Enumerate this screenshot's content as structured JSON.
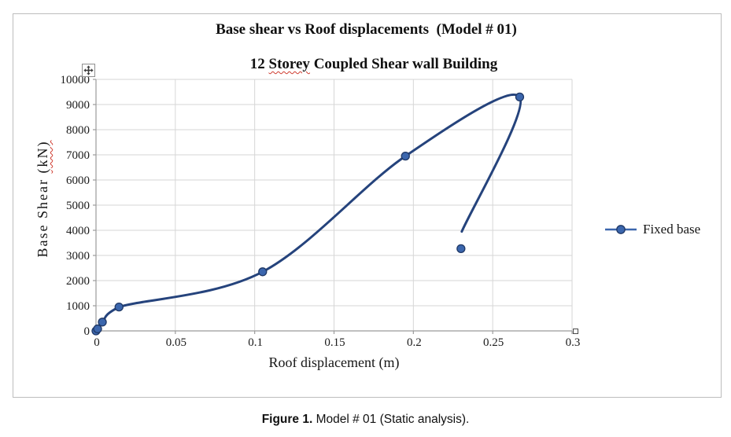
{
  "figure": {
    "title_line1": "Base shear vs Roof displacements  (Model # 01)",
    "title_line2": {
      "prefix": "12 ",
      "word": "Storey",
      "suffix": " Coupled Shear wall Building"
    },
    "ylabel": {
      "main": "Base Shear ",
      "units": "(kN)"
    },
    "legend_label": "Fixed base"
  },
  "chart_data": {
    "type": "line",
    "title": "Base shear vs Roof displacements (Model # 01)",
    "subtitle": "12 Storey Coupled Shear wall Building",
    "xlabel": "Roof displacement (m)",
    "ylabel": "Base Shear (kN)",
    "xlim": [
      0,
      0.3
    ],
    "ylim": [
      0,
      10000
    ],
    "xticks": [
      0,
      0.05,
      0.1,
      0.15,
      0.2,
      0.25,
      0.3
    ],
    "xtick_labels": [
      "0",
      "0.05",
      "0.1",
      "0.15",
      "0.2",
      "0.25",
      "0.3"
    ],
    "yticks": [
      0,
      1000,
      2000,
      3000,
      4000,
      5000,
      6000,
      7000,
      8000,
      9000,
      10000
    ],
    "ytick_labels": [
      "0",
      "1000",
      "2000",
      "3000",
      "4000",
      "5000",
      "6000",
      "7000",
      "8000",
      "9000",
      "10000"
    ],
    "grid": true,
    "legend_position": "right",
    "series": [
      {
        "name": "Fixed base",
        "smoothed": true,
        "points": [
          [
            0,
            0
          ],
          [
            0.001,
            80
          ],
          [
            0.004,
            350
          ],
          [
            0.0145,
            950
          ],
          [
            0.105,
            2350
          ],
          [
            0.195,
            6950
          ],
          [
            0.267,
            9300
          ],
          [
            0.23,
            3270
          ]
        ],
        "line_visible_end": [
          0.2305,
          3950
        ]
      }
    ],
    "colors": {
      "line": "#25437c",
      "marker_fill": "#3b66ad",
      "marker_stroke": "#1f3866",
      "grid": "#d6d6d6",
      "axis": "#9b9b9b"
    }
  },
  "overlays": {
    "move_handle_icon": "four-direction-move-arrows",
    "resize_handle": "selection-square-handle"
  },
  "caption": {
    "bold": "Figure 1.",
    "rest": " Model # 01 (Static analysis)."
  }
}
